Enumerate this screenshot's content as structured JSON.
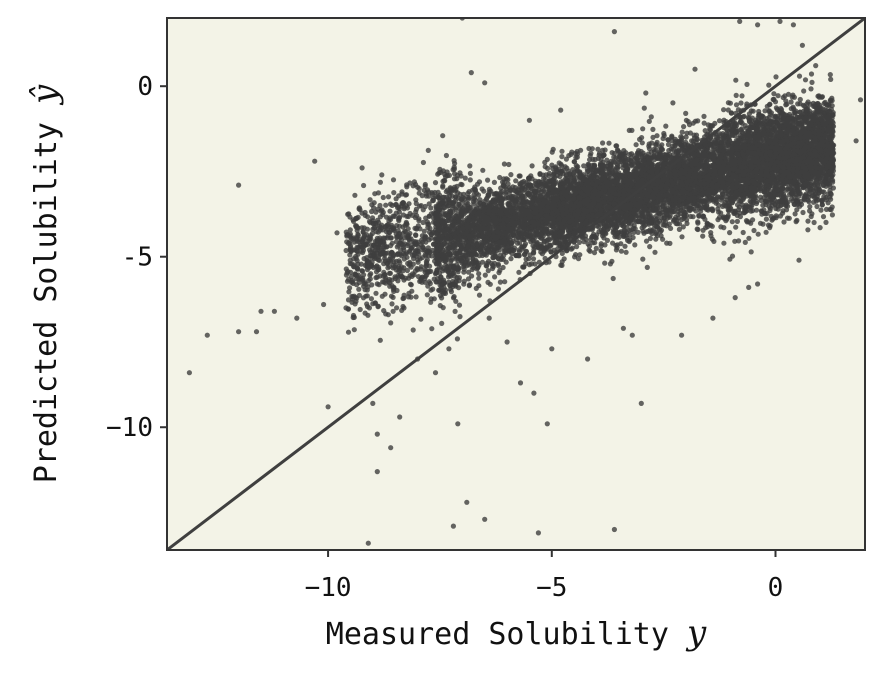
{
  "chart_data": {
    "type": "scatter",
    "title": "",
    "xlabel": "Measured Solubility",
    "xlabel_var": "y",
    "ylabel": "Predicted Solubility",
    "ylabel_var": "ŷ",
    "xlim": [
      -13.6,
      2.0
    ],
    "ylim": [
      -13.6,
      2.0
    ],
    "x_ticks": [
      -10,
      -5,
      0
    ],
    "y_ticks": [
      0,
      -5,
      -10
    ],
    "x_tick_labels": [
      "−10",
      "−5",
      "0"
    ],
    "y_tick_labels": [
      "0",
      "-5",
      "−10"
    ],
    "grid": false,
    "legend": null,
    "reference_line": {
      "name": "y = x",
      "from": [
        -13.6,
        -13.6
      ],
      "to": [
        2.0,
        2.0
      ]
    },
    "colors": {
      "background": "#f3f3e7",
      "points": "#3f3f3f",
      "line": "#3f3f3f",
      "frame": "#333333"
    },
    "series": [
      {
        "name": "predictions",
        "description": "dense cloud (~9900 pts) trending from (-8,-4.6) to (1,-1.8), plus sparse outliers",
        "outliers": [
          [
            -13.1,
            -8.4
          ],
          [
            -12.7,
            -7.3
          ],
          [
            -12.0,
            -2.9
          ],
          [
            -12.0,
            -7.2
          ],
          [
            -11.6,
            -7.2
          ],
          [
            -11.5,
            -6.6
          ],
          [
            -10.7,
            -6.8
          ],
          [
            -10.1,
            -6.4
          ],
          [
            -10.0,
            -9.4
          ],
          [
            -9.6,
            -6.5
          ],
          [
            -9.1,
            -13.4
          ],
          [
            -9.0,
            -9.3
          ],
          [
            -8.9,
            -10.2
          ],
          [
            -8.9,
            -11.3
          ],
          [
            -8.6,
            -10.6
          ],
          [
            -8.4,
            -9.7
          ],
          [
            -8.0,
            -8.0
          ],
          [
            -7.6,
            -8.4
          ],
          [
            -7.3,
            -7.7
          ],
          [
            -7.2,
            -12.9
          ],
          [
            -7.1,
            -9.9
          ],
          [
            -6.9,
            -12.2
          ],
          [
            -6.5,
            -12.7
          ],
          [
            -6.4,
            -6.8
          ],
          [
            -6.0,
            -7.5
          ],
          [
            -5.7,
            -8.7
          ],
          [
            -5.4,
            -9.0
          ],
          [
            -5.3,
            -13.1
          ],
          [
            -5.1,
            -9.9
          ],
          [
            -5.0,
            -7.7
          ],
          [
            -4.2,
            -8.0
          ],
          [
            -3.6,
            -13.0
          ],
          [
            -3.4,
            -7.1
          ],
          [
            -3.2,
            -7.3
          ],
          [
            -3.0,
            -9.3
          ],
          [
            -2.1,
            -7.3
          ],
          [
            -1.4,
            -6.8
          ],
          [
            -0.9,
            -6.2
          ],
          [
            -0.6,
            -5.9
          ],
          [
            -0.4,
            -5.8
          ],
          [
            -3.6,
            1.6
          ],
          [
            -6.8,
            0.4
          ],
          [
            -6.5,
            0.1
          ],
          [
            -0.8,
            1.9
          ],
          [
            -0.4,
            1.8
          ],
          [
            0.4,
            1.8
          ],
          [
            0.6,
            1.2
          ],
          [
            0.1,
            1.9
          ],
          [
            1.9,
            -0.4
          ],
          [
            1.8,
            -1.6
          ],
          [
            -11.2,
            -6.6
          ],
          [
            -9.8,
            -4.3
          ],
          [
            -7.0,
            2.0
          ],
          [
            -5.5,
            -1.0
          ],
          [
            -4.8,
            -0.7
          ],
          [
            -2.9,
            -0.2
          ],
          [
            -1.8,
            0.5
          ],
          [
            -10.3,
            -2.2
          ],
          [
            -9.4,
            -3.2
          ],
          [
            -8.8,
            -2.6
          ]
        ]
      }
    ]
  }
}
